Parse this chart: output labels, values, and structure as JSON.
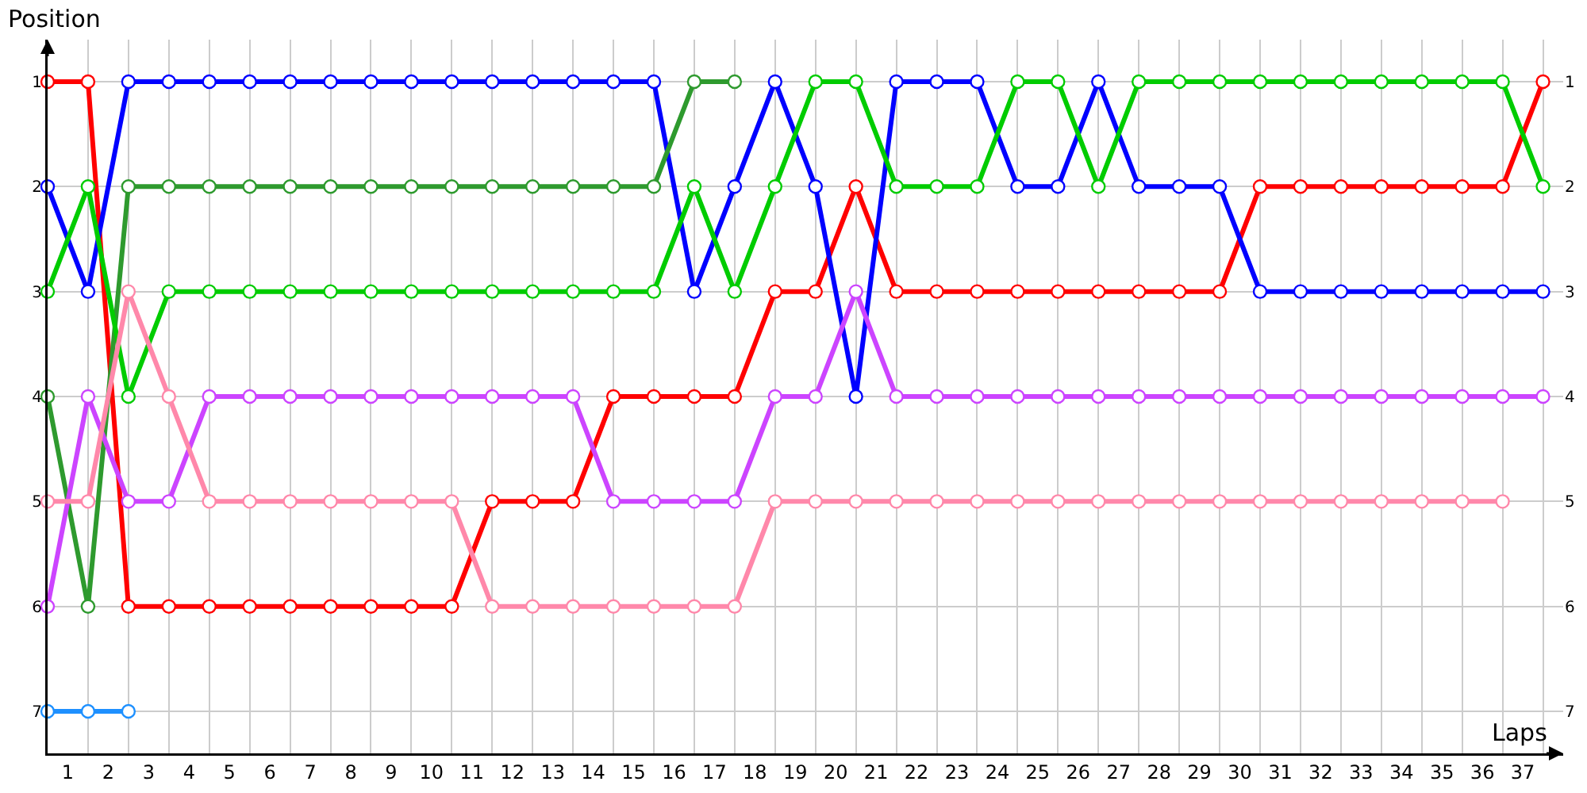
{
  "chart_data": {
    "type": "line",
    "xlabel": "Laps",
    "ylabel": "Position",
    "x": [
      0,
      1,
      2,
      3,
      4,
      5,
      6,
      7,
      8,
      9,
      10,
      11,
      12,
      13,
      14,
      15,
      16,
      17,
      18,
      19,
      20,
      21,
      22,
      23,
      24,
      25,
      26,
      27,
      28,
      29,
      30,
      31,
      32,
      33,
      34,
      35,
      36,
      37
    ],
    "series": [
      {
        "color": "#ff0000",
        "values": [
          1,
          1,
          6,
          6,
          6,
          6,
          6,
          6,
          6,
          6,
          6,
          5,
          5,
          5,
          4,
          4,
          4,
          4,
          3,
          3,
          2,
          3,
          3,
          3,
          3,
          3,
          3,
          3,
          3,
          3,
          2,
          2,
          2,
          2,
          2,
          2,
          2,
          1
        ]
      },
      {
        "color": "#0000ff",
        "values": [
          2,
          3,
          1,
          1,
          1,
          1,
          1,
          1,
          1,
          1,
          1,
          1,
          1,
          1,
          1,
          1,
          3,
          2,
          1,
          2,
          4,
          1,
          1,
          1,
          2,
          2,
          1,
          2,
          2,
          2,
          3,
          3,
          3,
          3,
          3,
          3,
          3,
          3
        ]
      },
      {
        "color": "#2e9a2e",
        "values": [
          4,
          6,
          2,
          2,
          2,
          2,
          2,
          2,
          2,
          2,
          2,
          2,
          2,
          2,
          2,
          2,
          1,
          1,
          null,
          null,
          null,
          null,
          null,
          null,
          null,
          null,
          null,
          null,
          null,
          null,
          null,
          null,
          null,
          null,
          null,
          null,
          null,
          null
        ]
      },
      {
        "color": "#00cc00",
        "values": [
          3,
          2,
          4,
          3,
          3,
          3,
          3,
          3,
          3,
          3,
          3,
          3,
          3,
          3,
          3,
          3,
          2,
          3,
          2,
          1,
          1,
          2,
          2,
          2,
          1,
          1,
          2,
          1,
          1,
          1,
          1,
          1,
          1,
          1,
          1,
          1,
          1,
          2
        ]
      },
      {
        "color": "#cc44ff",
        "values": [
          6,
          4,
          5,
          5,
          4,
          4,
          4,
          4,
          4,
          4,
          4,
          4,
          4,
          4,
          5,
          5,
          5,
          5,
          4,
          4,
          3,
          4,
          4,
          4,
          4,
          4,
          4,
          4,
          4,
          4,
          4,
          4,
          4,
          4,
          4,
          4,
          4,
          4
        ]
      },
      {
        "color": "#ff88aa",
        "values": [
          5,
          5,
          3,
          4,
          5,
          5,
          5,
          5,
          5,
          5,
          5,
          6,
          6,
          6,
          6,
          6,
          6,
          6,
          5,
          5,
          5,
          5,
          5,
          5,
          5,
          5,
          5,
          5,
          5,
          5,
          5,
          5,
          5,
          5,
          5,
          5,
          5,
          null
        ]
      },
      {
        "color": "#1e90ff",
        "values": [
          7,
          7,
          7,
          null,
          null,
          null,
          null,
          null,
          null,
          null,
          null,
          null,
          null,
          null,
          null,
          null,
          null,
          null,
          null,
          null,
          null,
          null,
          null,
          null,
          null,
          null,
          null,
          null,
          null,
          null,
          null,
          null,
          null,
          null,
          null,
          null,
          null,
          null
        ]
      }
    ],
    "xlim": [
      0,
      37.5
    ],
    "xticks": [
      {
        "value": 0,
        "label": null
      },
      {
        "value": 0.5,
        "label": "1"
      },
      {
        "value": 1,
        "label": null
      },
      {
        "value": 1.5,
        "label": "2"
      },
      {
        "value": 2,
        "label": null
      },
      {
        "value": 2.5,
        "label": "3"
      },
      {
        "value": 3,
        "label": null
      },
      {
        "value": 3.5,
        "label": "4"
      },
      {
        "value": 4,
        "label": null
      },
      {
        "value": 4.5,
        "label": "5"
      },
      {
        "value": 5,
        "label": null
      },
      {
        "value": 5.5,
        "label": "6"
      },
      {
        "value": 6,
        "label": null
      },
      {
        "value": 6.5,
        "label": "7"
      },
      {
        "value": 7,
        "label": null
      },
      {
        "value": 7.5,
        "label": "8"
      },
      {
        "value": 8,
        "label": null
      },
      {
        "value": 8.5,
        "label": "9"
      },
      {
        "value": 9,
        "label": null
      },
      {
        "value": 9.5,
        "label": "10"
      },
      {
        "value": 10,
        "label": null
      },
      {
        "value": 10.5,
        "label": "11"
      },
      {
        "value": 11,
        "label": null
      },
      {
        "value": 11.5,
        "label": "12"
      },
      {
        "value": 12,
        "label": null
      },
      {
        "value": 12.5,
        "label": "13"
      },
      {
        "value": 13,
        "label": null
      },
      {
        "value": 13.5,
        "label": "14"
      },
      {
        "value": 14,
        "label": null
      },
      {
        "value": 14.5,
        "label": "15"
      },
      {
        "value": 15,
        "label": null
      },
      {
        "value": 15.5,
        "label": "16"
      },
      {
        "value": 16,
        "label": null
      },
      {
        "value": 16.5,
        "label": "17"
      },
      {
        "value": 17,
        "label": null
      },
      {
        "value": 17.5,
        "label": "18"
      },
      {
        "value": 18,
        "label": null
      },
      {
        "value": 18.5,
        "label": "19"
      },
      {
        "value": 19,
        "label": null
      },
      {
        "value": 19.5,
        "label": "20"
      },
      {
        "value": 20,
        "label": null
      },
      {
        "value": 20.5,
        "label": "21"
      },
      {
        "value": 21,
        "label": null
      },
      {
        "value": 21.5,
        "label": "22"
      },
      {
        "value": 22,
        "label": null
      },
      {
        "value": 22.5,
        "label": "23"
      },
      {
        "value": 23,
        "label": null
      },
      {
        "value": 23.5,
        "label": "24"
      },
      {
        "value": 24,
        "label": null
      },
      {
        "value": 24.5,
        "label": "25"
      },
      {
        "value": 25,
        "label": null
      },
      {
        "value": 25.5,
        "label": "26"
      },
      {
        "value": 26,
        "label": null
      },
      {
        "value": 26.5,
        "label": "27"
      },
      {
        "value": 27,
        "label": null
      },
      {
        "value": 27.5,
        "label": "28"
      },
      {
        "value": 28,
        "label": null
      },
      {
        "value": 28.5,
        "label": "29"
      },
      {
        "value": 29,
        "label": null
      },
      {
        "value": 29.5,
        "label": "30"
      },
      {
        "value": 30,
        "label": null
      },
      {
        "value": 30.5,
        "label": "31"
      },
      {
        "value": 31,
        "label": null
      },
      {
        "value": 31.5,
        "label": "32"
      },
      {
        "value": 32,
        "label": null
      },
      {
        "value": 32.5,
        "label": "33"
      },
      {
        "value": 33,
        "label": null
      },
      {
        "value": 33.5,
        "label": "34"
      },
      {
        "value": 34,
        "label": null
      },
      {
        "value": 34.5,
        "label": "35"
      },
      {
        "value": 35,
        "label": null
      },
      {
        "value": 35.5,
        "label": "36"
      },
      {
        "value": 36,
        "label": null
      },
      {
        "value": 36.5,
        "label": "37"
      },
      {
        "value": 37,
        "label": null
      }
    ],
    "ylim": [
      7.4,
      0.6
    ],
    "yticks": [
      1,
      2,
      3,
      4,
      5,
      6,
      7
    ],
    "y2lim": [
      7.4,
      0.6
    ],
    "y2ticks": [
      1,
      2,
      3,
      4,
      5,
      6,
      7
    ],
    "grid": true,
    "marker": "circle",
    "line_style": "solid"
  }
}
